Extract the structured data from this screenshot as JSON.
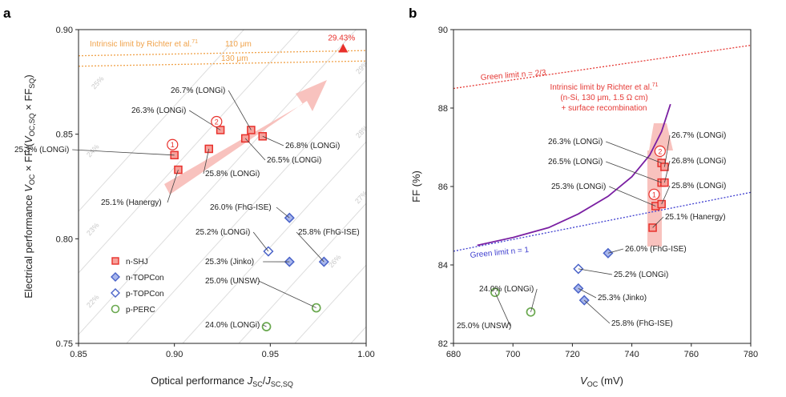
{
  "colors": {
    "shj": "#e8302b",
    "topcon": "#4a63c8",
    "perc": "#6aa84f",
    "orange": "#f0a24a",
    "green_limit_red": "#e53935",
    "green_limit_blue": "#3f3fd0",
    "intrinsic_purple": "#7a1fa2",
    "diag": "#dddddd",
    "arrow": "#f7b7b3"
  },
  "chart_data": [
    {
      "panel": "a",
      "type": "scatter",
      "panel_label": "a",
      "xlabel": "Optical performance J_SC/J_SC,SQ",
      "ylabel": "Electrical performance V_OC × FF/(V_OC,SQ × FF_SQ)",
      "xlim": [
        0.85,
        1.0
      ],
      "ylim": [
        0.75,
        0.9
      ],
      "xticks": [
        "0.85",
        "0.90",
        "0.95",
        "1.00"
      ],
      "yticks": [
        "0.75",
        "0.80",
        "0.85",
        "0.90"
      ],
      "intrinsic_limit_label": "Intrinsic limit by Richter et al.",
      "intrinsic_limit_ref": "71",
      "intrinsic_lines": [
        {
          "label": "110 μm",
          "y_left": 0.8875,
          "y_right": 0.89
        },
        {
          "label": "130 μm",
          "y_left": 0.8825,
          "y_right": 0.885
        }
      ],
      "limit_point": {
        "x": 0.988,
        "y": 0.891,
        "label": "29.43%"
      },
      "iso_efficiency_labels": [
        "22%",
        "23%",
        "24%",
        "25%",
        "26%",
        "27%",
        "28%",
        "29%"
      ],
      "legend": [
        "n-SHJ",
        "n-TOPCon",
        "p-TOPCon",
        "p-PERC"
      ],
      "legend_position": "bottom-left",
      "series": [
        {
          "name": "n-SHJ",
          "marker": "square",
          "points": [
            {
              "x": 0.9,
              "y": 0.84,
              "label": "25.3% (LONGi)"
            },
            {
              "x": 0.902,
              "y": 0.833,
              "label": "25.1% (Hanergy)"
            },
            {
              "x": 0.918,
              "y": 0.843,
              "label": "25.8% (LONGi)"
            },
            {
              "x": 0.924,
              "y": 0.852,
              "label": "26.3% (LONGi)"
            },
            {
              "x": 0.94,
              "y": 0.852,
              "label": "26.7% (LONGi)"
            },
            {
              "x": 0.937,
              "y": 0.848,
              "label": "26.5% (LONGi)"
            },
            {
              "x": 0.946,
              "y": 0.849,
              "label": "26.8% (LONGi)"
            }
          ]
        },
        {
          "name": "n-TOPCon",
          "marker": "diamond",
          "points": [
            {
              "x": 0.96,
              "y": 0.81,
              "label": "26.0% (FhG-ISE)"
            },
            {
              "x": 0.96,
              "y": 0.789,
              "label": "25.3% (Jinko)"
            },
            {
              "x": 0.978,
              "y": 0.789,
              "label": "25.8% (FhG-ISE)"
            }
          ]
        },
        {
          "name": "p-TOPCon",
          "marker": "diamond",
          "points": [
            {
              "x": 0.949,
              "y": 0.794,
              "label": "25.2% (LONGi)"
            }
          ]
        },
        {
          "name": "p-PERC",
          "marker": "circle",
          "points": [
            {
              "x": 0.948,
              "y": 0.758,
              "label": "24.0% (LONGi)"
            },
            {
              "x": 0.974,
              "y": 0.767,
              "label": "25.0% (UNSW)"
            }
          ]
        }
      ],
      "circled_markers": [
        {
          "n": "1",
          "x": 0.899,
          "y": 0.845
        },
        {
          "n": "2",
          "x": 0.922,
          "y": 0.856
        }
      ]
    },
    {
      "panel": "b",
      "type": "scatter",
      "panel_label": "b",
      "xlabel": "V_OC (mV)",
      "ylabel": "FF (%)",
      "xlim": [
        680,
        780
      ],
      "ylim": [
        82,
        90
      ],
      "xticks": [
        "680",
        "700",
        "720",
        "740",
        "760",
        "780"
      ],
      "yticks": [
        "82",
        "84",
        "86",
        "88",
        "90"
      ],
      "green_limit_top": {
        "label": "Green limit n = 2/3",
        "x": [
          680,
          780
        ],
        "y": [
          88.5,
          89.6
        ]
      },
      "green_limit_bottom": {
        "label": "Green limit n = 1",
        "x": [
          680,
          780
        ],
        "y": [
          84.35,
          85.85
        ]
      },
      "intrinsic_curve": {
        "label_lines": [
          "Intrinsic limit by Richter et al.",
          "(n-Si, 130 μm, 1.5 Ω cm)",
          "+ surface recombination"
        ],
        "ref": "71",
        "x": [
          688,
          700,
          712,
          722,
          732,
          740,
          746,
          750,
          753
        ],
        "y": [
          84.5,
          84.7,
          84.95,
          85.3,
          85.75,
          86.25,
          86.8,
          87.4,
          88.1
        ]
      },
      "series": [
        {
          "name": "n-SHJ",
          "marker": "square",
          "points": [
            {
              "x": 748,
              "y": 85.5,
              "label": "25.3% (LONGi)"
            },
            {
              "x": 747,
              "y": 84.95,
              "label": "25.1% (Hanergy)"
            },
            {
              "x": 750,
              "y": 85.55,
              "label": "25.8% (LONGi)"
            },
            {
              "x": 750,
              "y": 86.6,
              "label": "26.3% (LONGi)"
            },
            {
              "x": 751,
              "y": 86.5,
              "label": "26.7% (LONGi)"
            },
            {
              "x": 750,
              "y": 86.1,
              "label": "26.5% (LONGi)"
            },
            {
              "x": 751,
              "y": 86.1,
              "label": "26.8% (LONGi)"
            }
          ]
        },
        {
          "name": "n-TOPCon",
          "marker": "diamond",
          "points": [
            {
              "x": 732,
              "y": 84.3,
              "label": "26.0% (FhG-ISE)"
            },
            {
              "x": 722,
              "y": 83.4,
              "label": "25.3% (Jinko)"
            },
            {
              "x": 724,
              "y": 83.1,
              "label": "25.8% (FhG-ISE)"
            }
          ]
        },
        {
          "name": "p-TOPCon",
          "marker": "diamond",
          "points": [
            {
              "x": 722,
              "y": 83.9,
              "label": "25.2% (LONGi)"
            }
          ]
        },
        {
          "name": "p-PERC",
          "marker": "circle",
          "points": [
            {
              "x": 694,
              "y": 83.3,
              "label": "25.0% (UNSW)"
            },
            {
              "x": 706,
              "y": 82.8,
              "label": "24.0% (LONGi)"
            }
          ]
        }
      ],
      "circled_markers": [
        {
          "n": "1",
          "x": 747.5,
          "y": 85.8
        },
        {
          "n": "2",
          "x": 749.5,
          "y": 86.9
        }
      ]
    }
  ]
}
